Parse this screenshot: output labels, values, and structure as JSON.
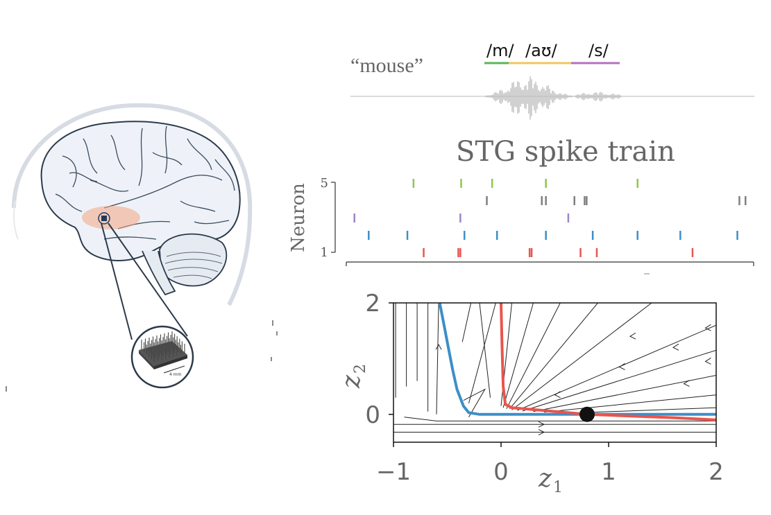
{
  "illustration": {
    "icons": [
      "brain-icon",
      "head-outline-icon",
      "electrode-array-icon"
    ],
    "array_scale_label": "4 mm",
    "highlight_color": "#f4a582",
    "electrode_color": "#1f3a5f"
  },
  "speech": {
    "word": "“mouse”",
    "phonemes": [
      {
        "symbol": "/m/",
        "color": "#5bb556"
      },
      {
        "symbol": "/aʊ/",
        "color": "#f2c45c"
      },
      {
        "symbol": "/s/",
        "color": "#b56fc0"
      }
    ],
    "waveform_color": "#bdbdbd"
  },
  "spike_raster": {
    "title": "STG spike train",
    "ylabel": "Neuron",
    "ytick_top": "5",
    "ytick_bottom": "1",
    "neurons": [
      {
        "id": 1,
        "color": "#e8554e",
        "spikes": [
          0.19,
          0.275,
          0.28,
          0.45,
          0.455,
          0.575,
          0.615,
          0.85
        ]
      },
      {
        "id": 2,
        "color": "#3b8fc7",
        "spikes": [
          0.055,
          0.15,
          0.29,
          0.37,
          0.49,
          0.605,
          0.715,
          0.82,
          0.96
        ]
      },
      {
        "id": 3,
        "color": "#9b86c6",
        "spikes": [
          0.02,
          0.28,
          0.545
        ]
      },
      {
        "id": 4,
        "color": "#7f7f7f",
        "spikes": [
          0.345,
          0.48,
          0.49,
          0.56,
          0.585,
          0.59,
          0.965,
          0.98
        ]
      },
      {
        "id": 5,
        "color": "#8cc84b",
        "spikes": [
          0.165,
          0.282,
          0.358,
          0.49,
          0.715
        ]
      }
    ]
  },
  "chart_data": {
    "type": "phase-portrait",
    "xlabel": "z",
    "xlabel_sub": "1",
    "ylabel": "z",
    "ylabel_sub": "2",
    "xlim": [
      -1,
      2
    ],
    "ylim": [
      -0.5,
      2
    ],
    "xtick_labels": [
      "−1",
      "0",
      "1",
      "2"
    ],
    "xticks": [
      -1,
      0,
      1,
      2
    ],
    "ytick_labels": [
      "0",
      "2"
    ],
    "yticks": [
      0,
      2
    ],
    "fixed_point": [
      0.8,
      0
    ],
    "series": [
      {
        "color": "#3b8fc7",
        "points": [
          [
            -0.57,
            2.0
          ],
          [
            -0.53,
            1.6
          ],
          [
            -0.49,
            1.2
          ],
          [
            -0.45,
            0.8
          ],
          [
            -0.41,
            0.45
          ],
          [
            -0.35,
            0.15
          ],
          [
            -0.3,
            0.03
          ],
          [
            -0.2,
            0.0
          ],
          [
            0.0,
            0.0
          ],
          [
            0.8,
            0.0
          ],
          [
            2.0,
            0.0
          ]
        ]
      },
      {
        "color": "#e8554e",
        "points": [
          [
            0.0,
            2.0
          ],
          [
            0.01,
            1.2
          ],
          [
            0.02,
            0.5
          ],
          [
            0.04,
            0.18
          ],
          [
            0.1,
            0.12
          ],
          [
            0.4,
            0.07
          ],
          [
            0.8,
            0.0
          ],
          [
            1.2,
            -0.03
          ],
          [
            1.6,
            -0.06
          ],
          [
            2.0,
            -0.1
          ]
        ]
      }
    ],
    "grid": false
  }
}
